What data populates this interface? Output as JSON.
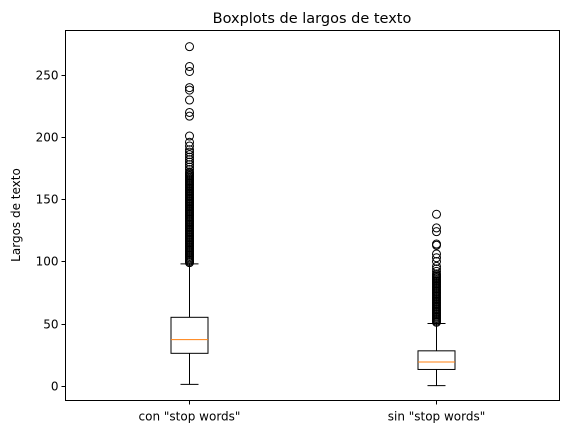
{
  "chart_data": {
    "type": "boxplot",
    "title": "Boxplots de largos de texto",
    "xlabel": "",
    "ylabel": "Largos de texto",
    "categories": [
      "con \"stop words\"",
      "sin \"stop words\""
    ],
    "ylim": [
      -12,
      286
    ],
    "yticks": [
      0,
      50,
      100,
      150,
      200,
      250
    ],
    "grid": false,
    "colors": {
      "box": "#000000",
      "median": "#ff7f0e",
      "flier": "#000000"
    },
    "boxes": [
      {
        "name": "con \"stop words\"",
        "whisker_low": 1,
        "q1": 26,
        "median": 37,
        "q3": 55,
        "whisker_high": 98,
        "outliers": [
          99,
          100,
          101,
          102,
          103,
          104,
          105,
          106,
          107,
          108,
          109,
          110,
          111,
          112,
          113,
          114,
          115,
          116,
          117,
          118,
          119,
          120,
          121,
          122,
          123,
          124,
          125,
          126,
          127,
          128,
          129,
          130,
          131,
          132,
          133,
          134,
          135,
          136,
          137,
          138,
          139,
          140,
          141,
          142,
          143,
          144,
          145,
          146,
          147,
          148,
          149,
          150,
          151,
          152,
          153,
          154,
          155,
          156,
          157,
          158,
          159,
          160,
          161,
          162,
          163,
          164,
          165,
          166,
          167,
          168,
          169,
          170,
          171,
          172,
          174,
          176,
          178,
          180,
          182,
          184,
          186,
          188,
          190,
          193,
          196,
          201,
          217,
          220,
          230,
          238,
          240,
          253,
          257,
          273
        ]
      },
      {
        "name": "sin \"stop words\"",
        "whisker_low": 0,
        "q1": 13,
        "median": 19,
        "q3": 28,
        "whisker_high": 50,
        "outliers": [
          51,
          52,
          53,
          54,
          55,
          56,
          57,
          58,
          59,
          60,
          61,
          62,
          63,
          64,
          65,
          66,
          67,
          68,
          69,
          70,
          71,
          72,
          73,
          74,
          75,
          76,
          77,
          78,
          79,
          80,
          81,
          82,
          83,
          84,
          85,
          86,
          87,
          88,
          89,
          90,
          92,
          94,
          96,
          100,
          103,
          106,
          113,
          114,
          124,
          127,
          138
        ]
      }
    ]
  }
}
